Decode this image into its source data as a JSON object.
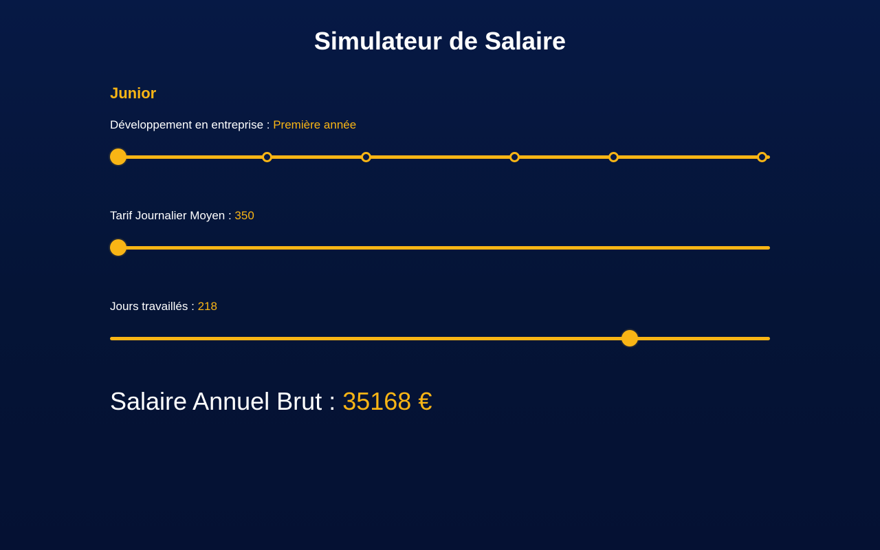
{
  "page": {
    "title": "Simulateur de Salaire"
  },
  "level": {
    "label": "Junior"
  },
  "experience": {
    "label": "Développement en entreprise :",
    "value": "Première année",
    "step_index": 0,
    "step_count": 6,
    "steps_filled": [
      false,
      false,
      false,
      false,
      false
    ]
  },
  "daily_rate": {
    "label": "Tarif Journalier Moyen :",
    "value": "350",
    "level_fraction": 0
  },
  "days_worked": {
    "label": "Jours travaillés :",
    "value": "218",
    "level_fraction": 0.8
  },
  "result": {
    "label": "Salaire Annuel Brut :",
    "amount": "35168 €"
  },
  "colors": {
    "background": "#061945",
    "accent": "#f9b515",
    "text": "#ffffff"
  }
}
